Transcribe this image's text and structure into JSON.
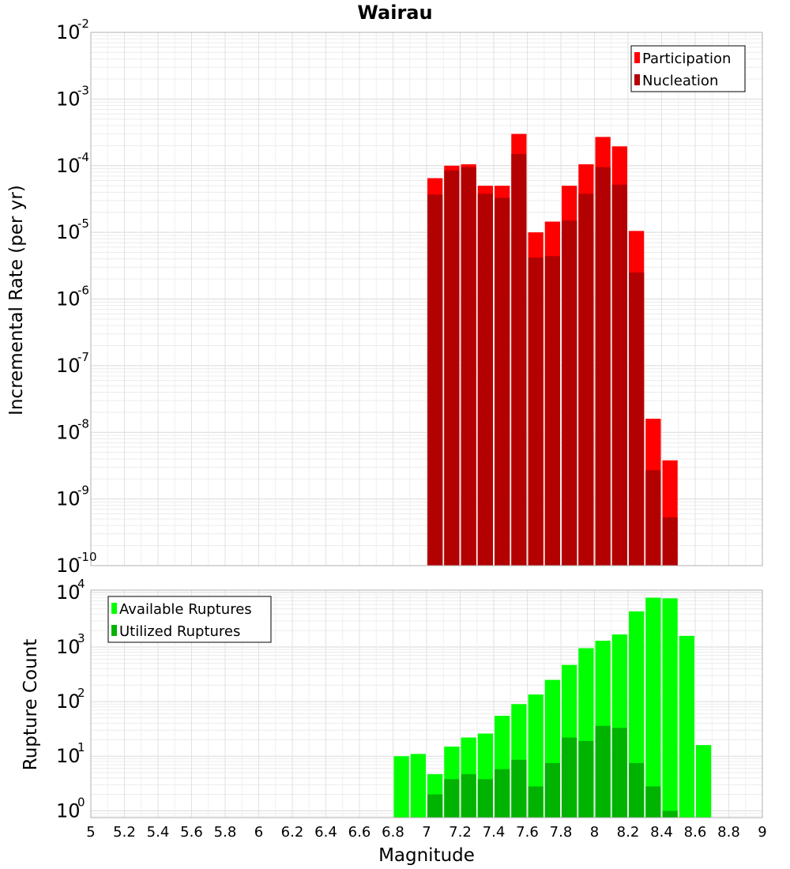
{
  "chart_data": [
    {
      "type": "bar",
      "title": "Wairau",
      "xlabel": "",
      "ylabel": "Incremental Rate (per yr)",
      "yscale": "log",
      "ylim": [
        1e-10,
        0.01
      ],
      "xlim": [
        5,
        9
      ],
      "x": [
        7.05,
        7.15,
        7.25,
        7.35,
        7.45,
        7.55,
        7.65,
        7.75,
        7.85,
        7.95,
        8.05,
        8.15,
        8.25,
        8.35,
        8.45
      ],
      "grid": true,
      "legend_position": "top-right",
      "series": [
        {
          "name": "Participation",
          "color": "#ff0000",
          "values": [
            6.5e-05,
            0.0001,
            0.000105,
            5e-05,
            5e-05,
            0.0003,
            1e-05,
            1.45e-05,
            5e-05,
            0.000105,
            0.00027,
            0.000195,
            1.05e-05,
            1.6e-08,
            3.8e-09
          ]
        },
        {
          "name": "Nucleation",
          "color": "#b30000",
          "values": [
            3.7e-05,
            8.5e-05,
            9.5e-05,
            3.8e-05,
            3.3e-05,
            0.00015,
            4.2e-06,
            4.4e-06,
            1.5e-05,
            3.8e-05,
            9.5e-05,
            5.2e-05,
            2.5e-06,
            2.7e-09,
            5.3e-10
          ]
        }
      ]
    },
    {
      "type": "bar",
      "title": "",
      "xlabel": "Magnitude",
      "ylabel": "Rupture Count",
      "yscale": "log",
      "ylim": [
        0.75,
        11000
      ],
      "xlim": [
        5,
        9
      ],
      "xticks": [
        "5",
        "5.2",
        "5.4",
        "5.6",
        "5.8",
        "6",
        "6.2",
        "6.4",
        "6.6",
        "6.8",
        "7",
        "7.2",
        "7.4",
        "7.6",
        "7.8",
        "8",
        "8.2",
        "8.4",
        "8.6",
        "8.8",
        "9"
      ],
      "x": [
        6.85,
        6.95,
        7.05,
        7.15,
        7.25,
        7.35,
        7.45,
        7.55,
        7.65,
        7.75,
        7.85,
        7.95,
        8.05,
        8.15,
        8.25,
        8.35,
        8.45,
        8.55,
        8.65
      ],
      "grid": true,
      "legend_position": "top-left",
      "series": [
        {
          "name": "Available Ruptures",
          "color": "#00ff00",
          "values": [
            10,
            11,
            4.7,
            15,
            22,
            26,
            55,
            90,
            135,
            250,
            470,
            950,
            1300,
            1700,
            4500,
            8000,
            7800,
            1600,
            16
          ]
        },
        {
          "name": "Utilized Ruptures",
          "color": "#00b300",
          "values": [
            null,
            null,
            2,
            3.8,
            4.7,
            3.8,
            5.8,
            8.6,
            2.8,
            7.5,
            22,
            19,
            36,
            33,
            7.5,
            2.8,
            1.0,
            null,
            null
          ]
        }
      ]
    }
  ]
}
